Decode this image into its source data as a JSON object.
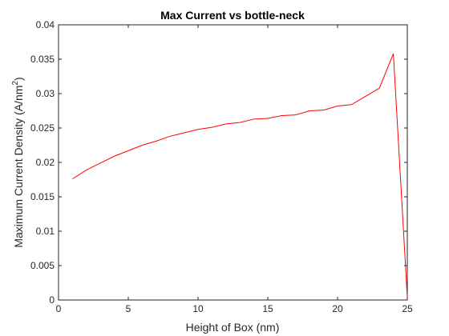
{
  "chart_data": {
    "type": "line",
    "title": "Max Current vs bottle-neck",
    "xlabel": "Height of Box (nm)",
    "ylabel_main": "Maximum Current Density (A/nm",
    "ylabel_sup": "2",
    "ylabel_tail": ")",
    "xlim": [
      0,
      25
    ],
    "ylim": [
      0,
      0.04
    ],
    "xticks": [
      0,
      5,
      10,
      15,
      20,
      25
    ],
    "xtick_labels": [
      "0",
      "5",
      "10",
      "15",
      "20",
      "25"
    ],
    "yticks": [
      0,
      0.005,
      0.01,
      0.015,
      0.02,
      0.025,
      0.03,
      0.035,
      0.04
    ],
    "ytick_labels": [
      "0",
      "0.005",
      "0.01",
      "0.015",
      "0.02",
      "0.025",
      "0.03",
      "0.035",
      "0.04"
    ],
    "grid": false,
    "series": [
      {
        "color": "#ff0000",
        "x": [
          1,
          2,
          3,
          4,
          5,
          6,
          7,
          8,
          9,
          10,
          11,
          12,
          13,
          14,
          15,
          16,
          17,
          18,
          19,
          20,
          21,
          22,
          23,
          24,
          25
        ],
        "y": [
          0.0176,
          0.0189,
          0.0199,
          0.0209,
          0.0217,
          0.0225,
          0.0231,
          0.0238,
          0.0243,
          0.0248,
          0.0251,
          0.0256,
          0.0258,
          0.0263,
          0.0264,
          0.0268,
          0.0269,
          0.0275,
          0.0276,
          0.0282,
          0.0284,
          0.0296,
          0.0308,
          0.0358,
          0.0004
        ]
      }
    ]
  }
}
